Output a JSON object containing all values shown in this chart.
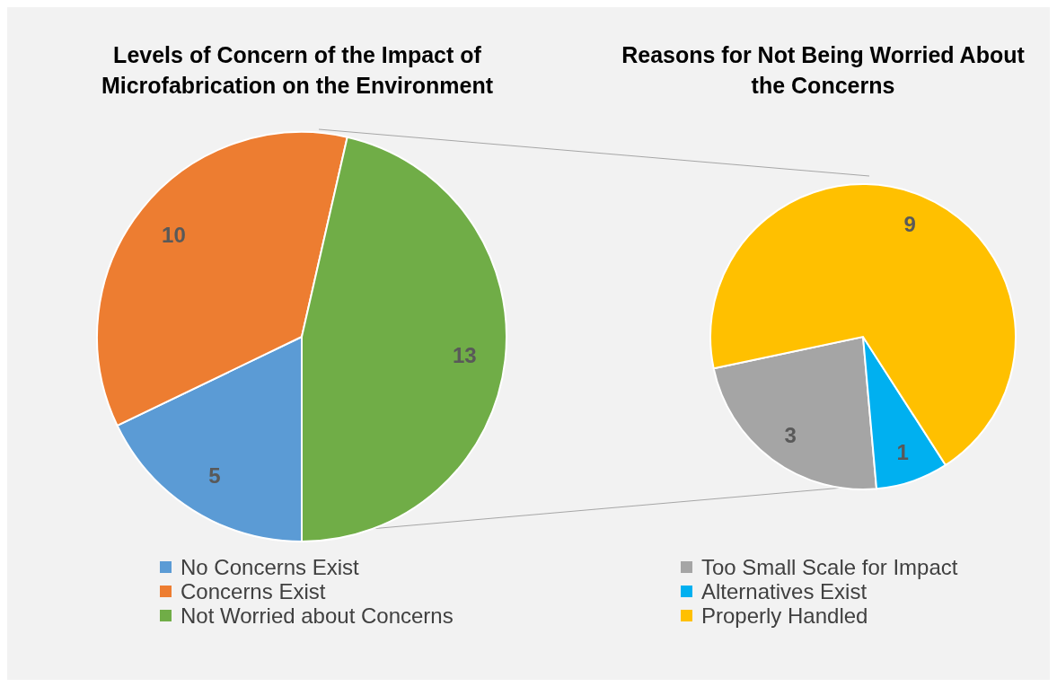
{
  "chart_data": [
    {
      "type": "pie",
      "title": "Levels of Concern of the Impact of Microfabrication on the Environment",
      "categories": [
        "No Concerns Exist",
        "Concerns Exist",
        "Not Worried about Concerns"
      ],
      "values": [
        5,
        10,
        13
      ],
      "colors": [
        "#5b9bd5",
        "#ed7d31",
        "#70ad47"
      ],
      "data_labels": true,
      "legend": "bottom"
    },
    {
      "type": "pie",
      "title": "Reasons for Not Being Worried About the Concerns",
      "categories": [
        "Too Small Scale for Impact",
        "Alternatives Exist",
        "Properly Handled"
      ],
      "values": [
        3,
        1,
        9
      ],
      "colors": [
        "#a5a5a5",
        "#00b0f0",
        "#ffc000"
      ],
      "data_labels": true,
      "legend": "bottom"
    }
  ]
}
